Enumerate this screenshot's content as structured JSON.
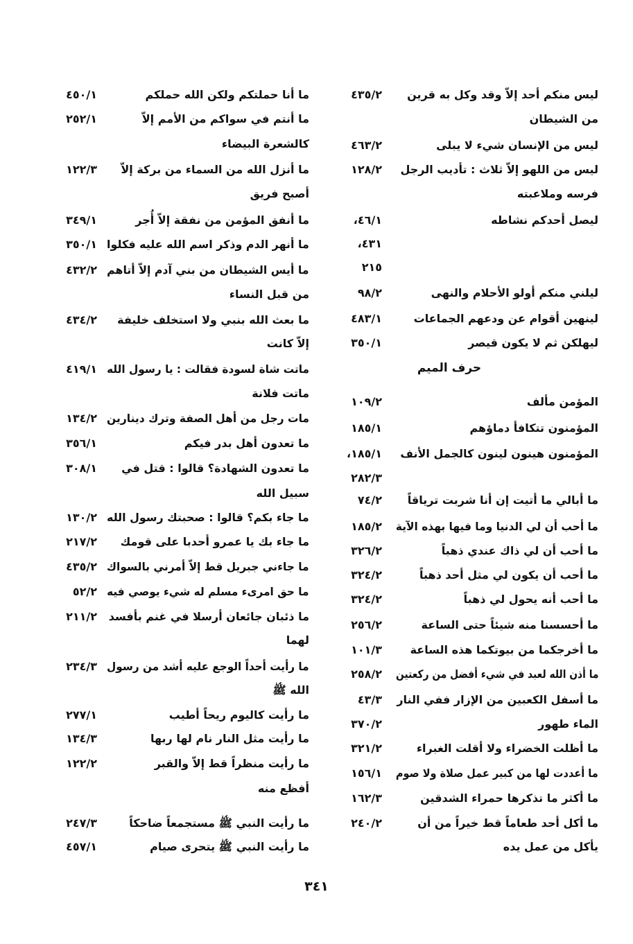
{
  "page_number": "٣٤١",
  "right_column": [
    {
      "text": "ليس منكم أحد إلاّ وقد وكل به قرين",
      "ref": "٤٣٥/٢"
    },
    {
      "text": "من الشيطان",
      "ref": ""
    },
    {
      "text": "ليس من الإنسان شيء لا يبلى",
      "ref": "٤٦٣/٢"
    },
    {
      "text": "ليس من اللهو إلاّ ثلاث : تأديب الرجل",
      "ref": "١٢٨/٢"
    },
    {
      "text": "فرسه وملاعبته",
      "ref": ""
    },
    {
      "text": "ليصل أحدكم نشاطه",
      "ref": "،٤٦/١"
    },
    {
      "text": "",
      "ref": "،٤٣١"
    },
    {
      "text": "",
      "ref": "٢١٥"
    },
    {
      "text": "ليلني منكم أولو الأحلام والنهى",
      "ref": "٩٨/٢"
    },
    {
      "text": "لينهين أقوام عن ودعهم الجماعات",
      "ref": "٤٨٣/١"
    },
    {
      "text": "ليهلكن ثم لا يكون قيصر",
      "ref": "٣٥٠/١"
    },
    {
      "heading": "حرف الميم"
    },
    {
      "text": "المؤمن مألف",
      "ref": "١٠٩/٢"
    },
    {
      "text": "المؤمنون تتكافأ دماؤهم",
      "ref": "١٨٥/١"
    },
    {
      "text": "المؤمنون هينون لينون كالجمل الأنف",
      "ref": "،١٨٥/١"
    },
    {
      "text": "",
      "ref": "٢٨٢/٣"
    },
    {
      "text": "ما أبالي ما أتيت إن أنا شربت ترياقاً",
      "ref": "٧٤/٢"
    },
    {
      "text": "ما أحب أن لي الدنيا وما فيها بهذه الآية",
      "ref": "١٨٥/٢"
    },
    {
      "text": "ما أحب أن لي ذاك عندي ذهباً",
      "ref": "٣٢٦/٢"
    },
    {
      "text": "ما أحب أن يكون لي مثل أحد ذهباً",
      "ref": "٣٢٤/٢"
    },
    {
      "text": "ما أحب أنه يحول لي ذهباً",
      "ref": "٣٢٤/٢"
    },
    {
      "text": "ما أحسسنا منه شيئاً حتى الساعة",
      "ref": "٢٥٦/٢"
    },
    {
      "text": "ما أخرجكما من بيوتكما هذه الساعة",
      "ref": "١٠١/٣"
    },
    {
      "text": "ما أذن الله لعبد في شيء أفضل من ركعتين",
      "ref": "٢٥٨/٢"
    },
    {
      "text": "ما أسفل الكعبين من الإزار ففي النار",
      "ref": "٤٣/٣"
    },
    {
      "text": "الماء طهور",
      "ref": "٣٧٠/٢"
    },
    {
      "text": "ما أظلت الخضراء ولا أقلت الغبراء",
      "ref": "٣٢١/٢"
    },
    {
      "text": "ما أعددت لها من كبير عمل صلاة ولا صوم",
      "ref": "١٥٦/١"
    },
    {
      "text": "ما أكثر ما تذكرها حمراء الشدقين",
      "ref": "١٦٢/٣"
    },
    {
      "text": "ما أكل أحد طعاماً قط خيراً من أن",
      "ref": "٢٤٠/٢"
    },
    {
      "text": "يأكل من عمل يده",
      "ref": ""
    }
  ],
  "left_column": [
    {
      "text": "ما أنا حملتكم ولكن الله حملكم",
      "ref": "٤٥٠/١"
    },
    {
      "text": "ما أنتم في سواكم من الأمم إلاّ",
      "ref": "٢٥٢/١"
    },
    {
      "text": "كالشعرة البيضاء",
      "ref": ""
    },
    {
      "text": "ما أنزل الله من السماء من بركة إلاّ",
      "ref": "١٢٢/٣"
    },
    {
      "text": "أصبح فريق",
      "ref": ""
    },
    {
      "text": "ما أنفق المؤمن من نفقة إلاّ أُجر",
      "ref": "٣٤٩/١"
    },
    {
      "text": "ما أنهر الدم وذكر اسم الله عليه فكلوا",
      "ref": "٣٥٠/١"
    },
    {
      "text": "ما أيس الشيطان من بني آدم إلاّ أتاهم",
      "ref": "٤٣٢/٢"
    },
    {
      "text": "من قبل النساء",
      "ref": ""
    },
    {
      "text": "ما بعث الله بنبي ولا استخلف خليفة",
      "ref": "٤٣٤/٢"
    },
    {
      "text": "إلاّ كانت",
      "ref": ""
    },
    {
      "text": "ماتت شاة لسودة فقالت : يا رسول الله",
      "ref": "٤١٩/١"
    },
    {
      "text": "ماتت فلانة",
      "ref": ""
    },
    {
      "text": "مات رجل من أهل الصفة وترك دينارين",
      "ref": "١٣٤/٢"
    },
    {
      "text": "ما تعدون أهل بدر فيكم",
      "ref": "٣٥٦/١"
    },
    {
      "text": "ما تعدون الشهادة؟ قالوا : قتل في",
      "ref": "٣٠٨/١"
    },
    {
      "text": "سبيل الله",
      "ref": ""
    },
    {
      "text": "ما جاء بكم؟ قالوا : صحبتك رسول الله",
      "ref": "١٣٠/٢"
    },
    {
      "text": "ما جاء بك يا عمرو أحدبا على قومك",
      "ref": "٢١٧/٢"
    },
    {
      "text": "ما جاءني جبريل قط إلاّ أمرني بالسواك",
      "ref": "٤٣٥/٢"
    },
    {
      "text": "ما حق امرىء مسلم له شيء يوصي فيه",
      "ref": "٥٢/٢"
    },
    {
      "text": "ما ذئبان جائعان أرسلا في غنم بأفسد",
      "ref": "٢١١/٢"
    },
    {
      "text": "لهما",
      "ref": ""
    },
    {
      "text": "ما رأيت أحداً الوجع عليه أشد من رسول",
      "ref": "٢٣٤/٣"
    },
    {
      "text": "الله ﷺ",
      "ref": ""
    },
    {
      "text": "ما رأيت كاليوم ريحاً أطيب",
      "ref": "٢٧٧/١"
    },
    {
      "text": "ما رأيت مثل النار نام لها ربها",
      "ref": "١٣٤/٣"
    },
    {
      "text": "ما رأيت منظراً قط إلاّ والقبر",
      "ref": "١٢٢/٢"
    },
    {
      "text": "أفظع منه",
      "ref": ""
    },
    {
      "text": "ما رأيت النبي ﷺ مستجمعاً ضاحكاً",
      "ref": "٢٤٧/٣"
    },
    {
      "text": "ما رأيت النبي ﷺ يتحرى صيام",
      "ref": "٤٥٧/١"
    }
  ]
}
